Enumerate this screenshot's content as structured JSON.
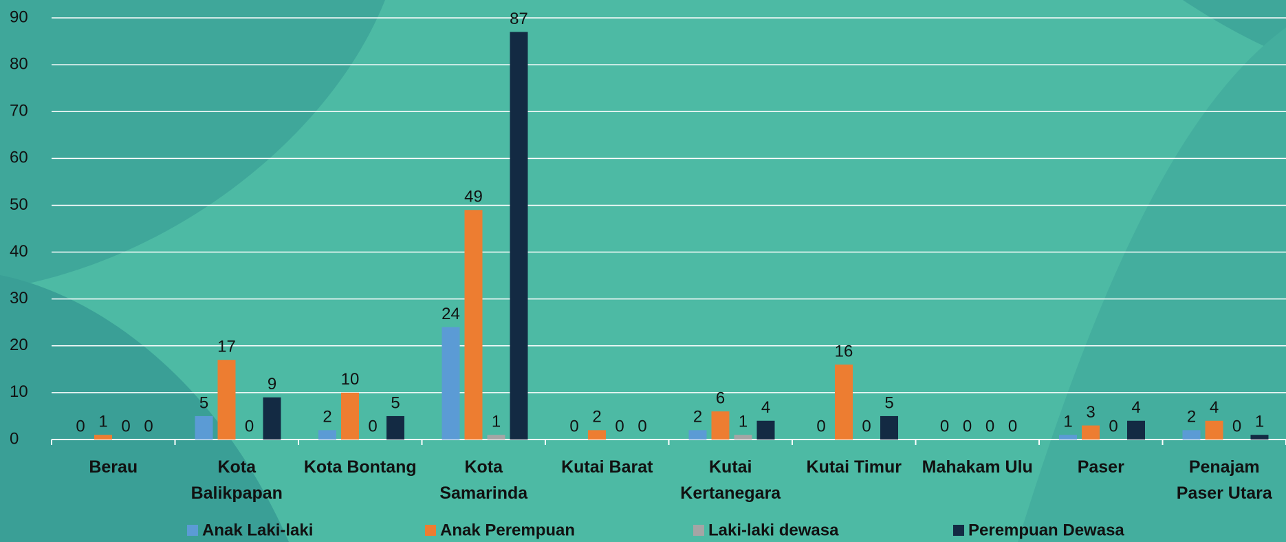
{
  "chart_data": {
    "type": "bar",
    "categories": [
      "Berau",
      "Kota Balikpapan",
      "Kota Bontang",
      "Kota Samarinda",
      "Kutai Barat",
      "Kutai Kertanegara",
      "Kutai Timur",
      "Mahakam Ulu",
      "Paser",
      "Penajam Paser Utara"
    ],
    "series": [
      {
        "name": "Anak Laki-laki",
        "color": "#5b9bd5",
        "values": [
          0,
          5,
          2,
          24,
          0,
          2,
          0,
          0,
          1,
          2
        ]
      },
      {
        "name": "Anak Perempuan",
        "color": "#ed7d31",
        "values": [
          1,
          17,
          10,
          49,
          2,
          6,
          16,
          0,
          3,
          4
        ]
      },
      {
        "name": "Laki-laki dewasa",
        "color": "#a5a5a5",
        "values": [
          0,
          0,
          0,
          1,
          0,
          1,
          0,
          0,
          0,
          0
        ]
      },
      {
        "name": "Perempuan Dewasa",
        "color": "#132a43",
        "values": [
          0,
          9,
          5,
          87,
          0,
          4,
          5,
          0,
          4,
          1
        ]
      }
    ],
    "ylim": [
      0,
      90
    ],
    "yticks": [
      0,
      10,
      20,
      30,
      40,
      50,
      60,
      70,
      80,
      90
    ],
    "grid": true,
    "legend": "bottom"
  }
}
